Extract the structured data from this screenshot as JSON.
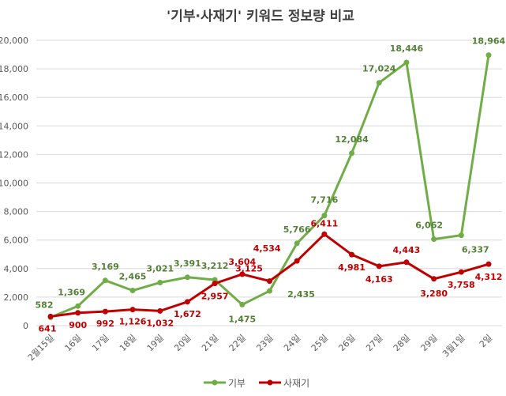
{
  "chart_data": {
    "type": "line",
    "title": "'기부·사재기' 키워드 정보량 비교",
    "categories": [
      "2월15일",
      "16일",
      "17일",
      "18일",
      "19일",
      "20일",
      "21일",
      "22일",
      "23일",
      "24일",
      "25일",
      "26일",
      "27일",
      "28일",
      "29일",
      "3월1일",
      "2일"
    ],
    "series": [
      {
        "name": "기부",
        "color": "#70ad47",
        "label_color": "#538135",
        "values": [
          582,
          1369,
          3169,
          2465,
          3021,
          3391,
          3212,
          1475,
          2435,
          5766,
          7716,
          12084,
          17024,
          18446,
          6062,
          6337,
          18964
        ]
      },
      {
        "name": "사재기",
        "color": "#c00000",
        "label_color": "#c00000",
        "values": [
          641,
          900,
          992,
          1126,
          1032,
          1672,
          2957,
          3604,
          3125,
          4534,
          6411,
          4981,
          4163,
          4443,
          3280,
          3758,
          4312
        ]
      }
    ],
    "ylim": [
      0,
      20000
    ],
    "yticks": [
      0,
      2000,
      4000,
      6000,
      8000,
      10000,
      12000,
      14000,
      16000,
      18000,
      20000
    ],
    "grid": true,
    "legend": "bottom"
  }
}
